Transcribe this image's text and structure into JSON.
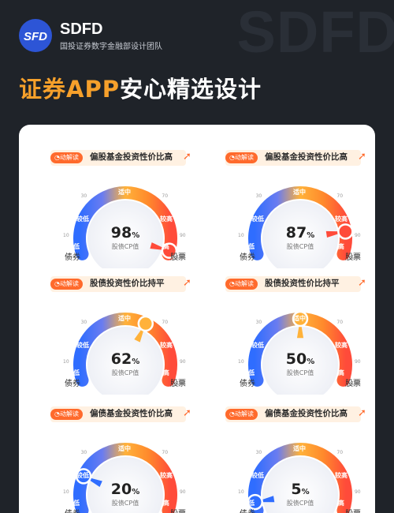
{
  "background_word": "SDFD",
  "brand": {
    "logo_text": "SFD",
    "name": "SDFD",
    "subtitle": "国投证券数字金融部设计团队"
  },
  "title": {
    "highlight": "证券APP",
    "rest": "安心精选设计"
  },
  "colors": {
    "brand_blue": "#2d55d6",
    "accent_orange": "#f6a02b",
    "gauge_blue": "#2f6dff",
    "gauge_orange": "#ffb23a",
    "gauge_red": "#ff4b3a"
  },
  "gauges": [
    {
      "badge": "动解读",
      "title": "偏股基金投资性价比高",
      "value": "98",
      "pct": "%",
      "cp_label": "股债CP值",
      "left": "债券",
      "right": "股票",
      "ticks": [
        "0",
        "10",
        "30",
        "70",
        "90",
        "100"
      ],
      "segments": [
        "低",
        "较低",
        "适中",
        "较高",
        "高"
      ],
      "level": 0.98
    },
    {
      "badge": "动解读",
      "title": "偏股基金投资性价比高",
      "value": "87",
      "pct": "%",
      "cp_label": "股债CP值",
      "left": "债券",
      "right": "股票",
      "ticks": [
        "0",
        "10",
        "30",
        "70",
        "90",
        "100"
      ],
      "segments": [
        "低",
        "较低",
        "适中",
        "较高",
        "高"
      ],
      "level": 0.87
    },
    {
      "badge": "动解读",
      "title": "股债投资性价比持平",
      "value": "62",
      "pct": "%",
      "cp_label": "股债CP值",
      "left": "债券",
      "right": "股票",
      "ticks": [
        "0",
        "10",
        "30",
        "70",
        "90",
        "100"
      ],
      "segments": [
        "低",
        "较低",
        "适中",
        "较高",
        "高"
      ],
      "level": 0.62
    },
    {
      "badge": "动解读",
      "title": "股债投资性价比持平",
      "value": "50",
      "pct": "%",
      "cp_label": "股债CP值",
      "left": "债券",
      "right": "股票",
      "ticks": [
        "0",
        "10",
        "30",
        "70",
        "90",
        "100"
      ],
      "segments": [
        "低",
        "较低",
        "适中",
        "较高",
        "高"
      ],
      "level": 0.5
    },
    {
      "badge": "动解读",
      "title": "偏债基金投资性价比高",
      "value": "20",
      "pct": "%",
      "cp_label": "股债CP值",
      "left": "债券",
      "right": "股票",
      "ticks": [
        "0",
        "10",
        "30",
        "70",
        "90",
        "100"
      ],
      "segments": [
        "低",
        "较低",
        "适中",
        "较高",
        "高"
      ],
      "level": 0.2
    },
    {
      "badge": "动解读",
      "title": "偏债基金投资性价比高",
      "value": "5",
      "pct": "%",
      "cp_label": "股债CP值",
      "left": "债券",
      "right": "股票",
      "ticks": [
        "0",
        "10",
        "30",
        "70",
        "90",
        "100"
      ],
      "segments": [
        "低",
        "较低",
        "适中",
        "较高",
        "高"
      ],
      "level": 0.05
    }
  ]
}
